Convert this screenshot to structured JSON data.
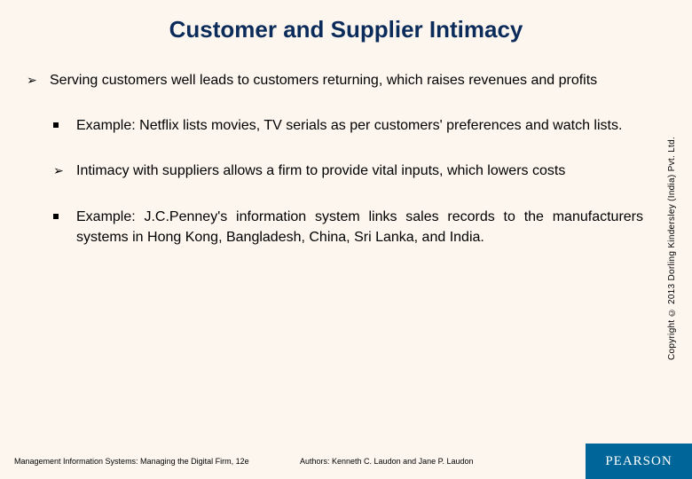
{
  "title": {
    "text": "Customer and Supplier Intimacy",
    "color": "#0b2b5a",
    "fontsize": 26
  },
  "content_fontsize": 16,
  "justify": true,
  "items": [
    {
      "bullet": "arrow",
      "indent": false,
      "text": "Serving customers well leads to customers returning, which raises revenues and profits"
    },
    {
      "bullet": "square",
      "indent": true,
      "text": "Example: Netflix lists movies, TV serials as per customers' preferences and watch lists."
    },
    {
      "bullet": "arrow",
      "indent": true,
      "text": "Intimacy with suppliers allows a firm to provide vital inputs, which lowers costs"
    },
    {
      "bullet": "square",
      "indent": true,
      "text": "Example: J.C.Penney's information system links sales records to the manufacturers systems in Hong Kong, Bangladesh, China, Sri Lanka, and India."
    }
  ],
  "copyright": "Copyright © 2013 Dorling Kindersley (India) Pvt. Ltd.",
  "footer": {
    "left": "Management Information Systems: Managing the Digital Firm, 12e",
    "mid": "Authors: Kenneth C. Laudon and Jane P. Laudon",
    "logo": "PEARSON",
    "logo_bg": "#006699"
  },
  "background_color": "#fdf6ef"
}
